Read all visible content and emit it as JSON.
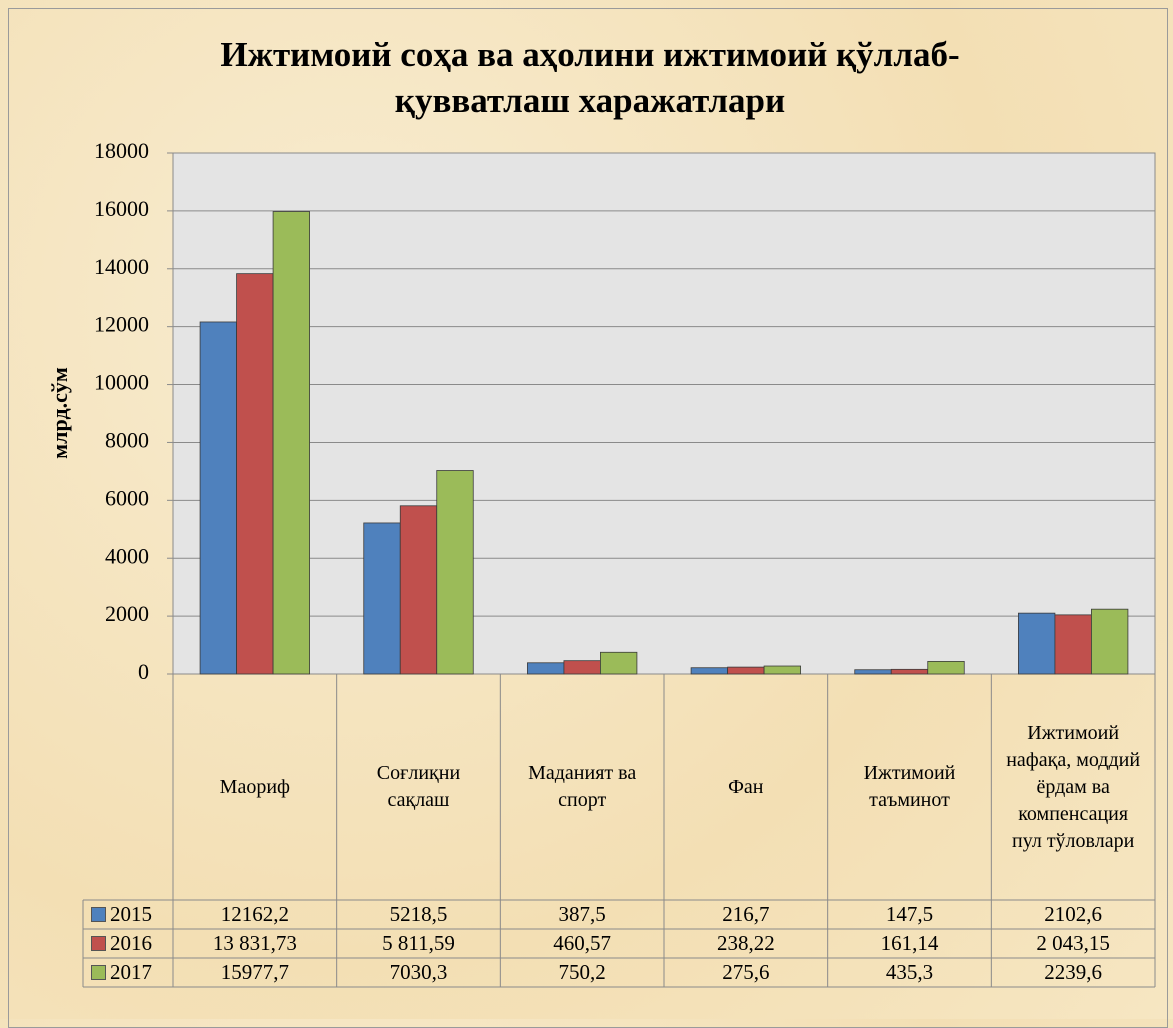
{
  "chart_data": {
    "type": "bar",
    "title": "Ижтимоий соҳа ва аҳолини ижтимоий қўллаб-қувватлаш  харажатлари",
    "y_label": "млрд.сўм",
    "categories": [
      "Маориф",
      "Соғлиқни сақлаш",
      "Маданият ва спорт",
      "Фан",
      "Ижтимоий таъминот",
      "Ижтимоий нафақа, моддий ёрдам ва компенсация пул тўловлари"
    ],
    "series": [
      {
        "name": "2015",
        "color": "#4f81bd",
        "values": [
          12162.2,
          5218.5,
          387.5,
          216.7,
          147.5,
          2102.6
        ],
        "value_labels": [
          "12162,2",
          "5218,5",
          "387,5",
          "216,7",
          "147,5",
          "2102,6"
        ]
      },
      {
        "name": "2016",
        "color": "#c0504d",
        "values": [
          13831.73,
          5811.59,
          460.57,
          238.22,
          161.14,
          2043.15
        ],
        "value_labels": [
          "13 831,73",
          "5 811,59",
          "460,57",
          "238,22",
          "161,14",
          "2 043,15"
        ]
      },
      {
        "name": "2017",
        "color": "#9bbb59",
        "values": [
          15977.7,
          7030.3,
          750.2,
          275.6,
          435.3,
          2239.6
        ],
        "value_labels": [
          "15977,7",
          "7030,3",
          "750,2",
          "275,6",
          "435,3",
          "2239,6"
        ]
      }
    ],
    "ylim": [
      0,
      18000
    ],
    "yticks": [
      0,
      2000,
      4000,
      6000,
      8000,
      10000,
      12000,
      14000,
      16000,
      18000
    ],
    "grid": true
  }
}
